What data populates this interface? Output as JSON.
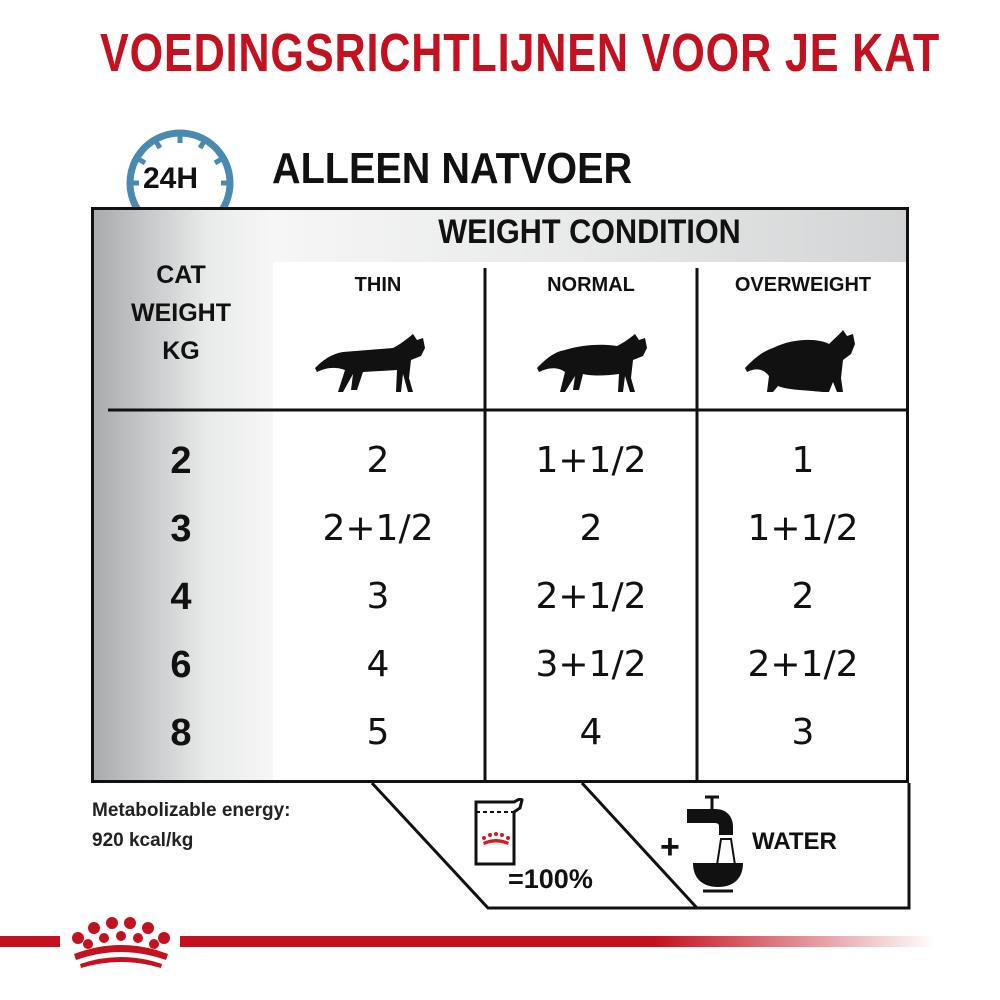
{
  "title": "VOEDINGSRICHTLIJNEN VOOR JE KAT",
  "subtitle": "ALLEEN NATVOER",
  "clock_label": "24H",
  "table": {
    "header": "WEIGHT CONDITION",
    "row_header": [
      "CAT",
      "WEIGHT",
      "KG"
    ],
    "columns": [
      "THIN",
      "NORMAL",
      "OVERWEIGHT"
    ],
    "rows": [
      {
        "weight": "2",
        "values": [
          "2",
          "1+1/2",
          "1"
        ]
      },
      {
        "weight": "3",
        "values": [
          "2+1/2",
          "2",
          "1+1/2"
        ]
      },
      {
        "weight": "4",
        "values": [
          "3",
          "2+1/2",
          "2"
        ]
      },
      {
        "weight": "6",
        "values": [
          "4",
          "3+1/2",
          "2+1/2"
        ]
      },
      {
        "weight": "8",
        "values": [
          "5",
          "4",
          "3"
        ]
      }
    ]
  },
  "footer": {
    "energy_label": "Metabolizable energy:",
    "energy_value": "920 kcal/kg",
    "pouch_percent": "=100%",
    "plus": "+",
    "water": "WATER"
  },
  "colors": {
    "brand_red": "#c4111f",
    "clock_blue": "#4a8ab0"
  },
  "icons": [
    "clock-icon",
    "cat-thin-icon",
    "cat-normal-icon",
    "cat-overweight-icon",
    "pouch-icon",
    "tap-water-icon",
    "royal-crown-logo"
  ]
}
